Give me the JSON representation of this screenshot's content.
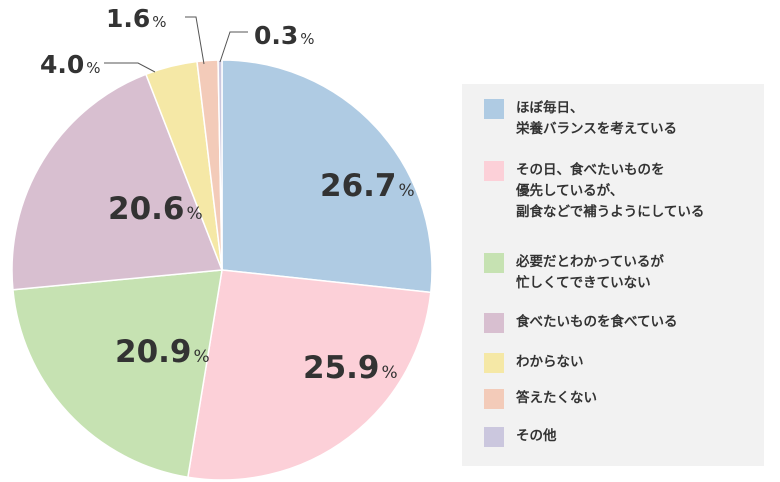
{
  "chart_data": {
    "type": "pie",
    "unit": "%",
    "slices": [
      {
        "label": "ほぼ毎日、\n栄養バランスを考えている",
        "value": 26.7,
        "display": "26.7",
        "color": "#afcbe3"
      },
      {
        "label": "その日、食べたいものを\n優先しているが、\n副食などで補うようにしている",
        "value": 25.9,
        "display": "25.9",
        "color": "#fcd0d8"
      },
      {
        "label": "必要だとわかっているが\n忙しくてできていない",
        "value": 20.9,
        "display": "20.9",
        "color": "#c6e2b2"
      },
      {
        "label": "食べたいものを食べている",
        "value": 20.6,
        "display": "20.6",
        "color": "#d8bfd0"
      },
      {
        "label": "わからない",
        "value": 4.0,
        "display": "4.0",
        "color": "#f5e8a6"
      },
      {
        "label": "答えたくない",
        "value": 1.6,
        "display": "1.6",
        "color": "#f3cbb9"
      },
      {
        "label": "その他",
        "value": 0.3,
        "display": "0.3",
        "color": "#cbc7de"
      }
    ]
  }
}
